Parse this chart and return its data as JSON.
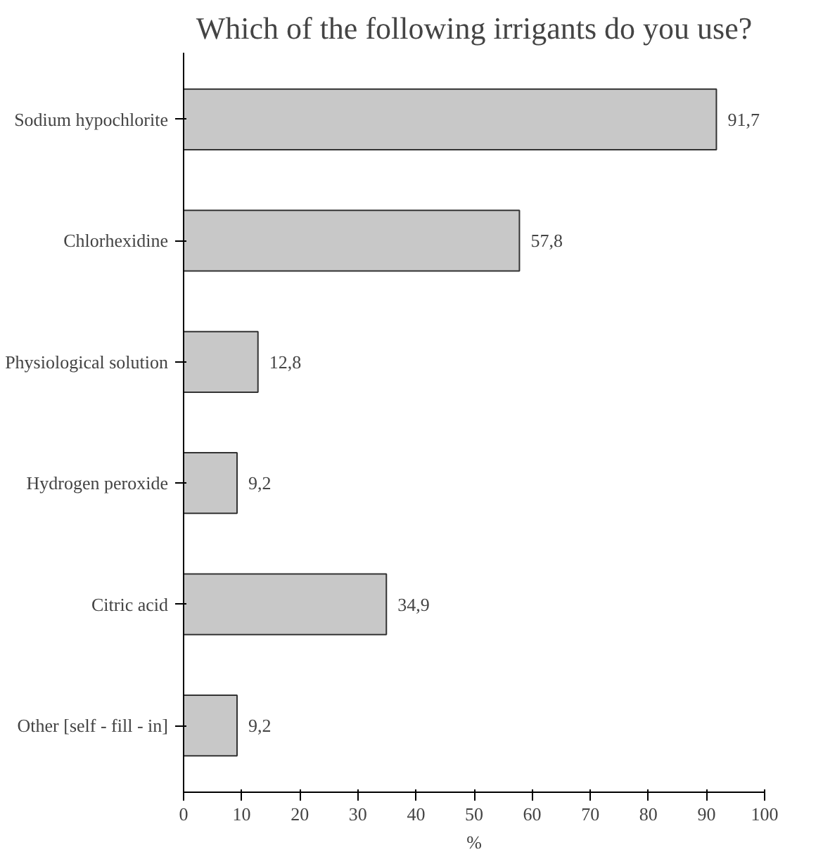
{
  "chart_data": {
    "type": "bar",
    "orientation": "horizontal",
    "title": "Which of the following irrigants do you use?",
    "categories": [
      "Sodium hypochlorite",
      "Chlorhexidine",
      "Physiological solution",
      "Hydrogen peroxide",
      "Citric acid",
      "Other [self - fill - in]"
    ],
    "values": [
      91.7,
      57.8,
      12.8,
      9.2,
      34.9,
      9.2
    ],
    "value_labels": [
      "91,7",
      "57,8",
      "12,8",
      "9,2",
      "34,9",
      "9,2"
    ],
    "color": "#c8c8c8",
    "xlabel": "%",
    "xlim": [
      0,
      100
    ],
    "xticks": [
      0,
      10,
      20,
      30,
      40,
      50,
      60,
      70,
      80,
      90,
      100
    ],
    "grid": false
  }
}
